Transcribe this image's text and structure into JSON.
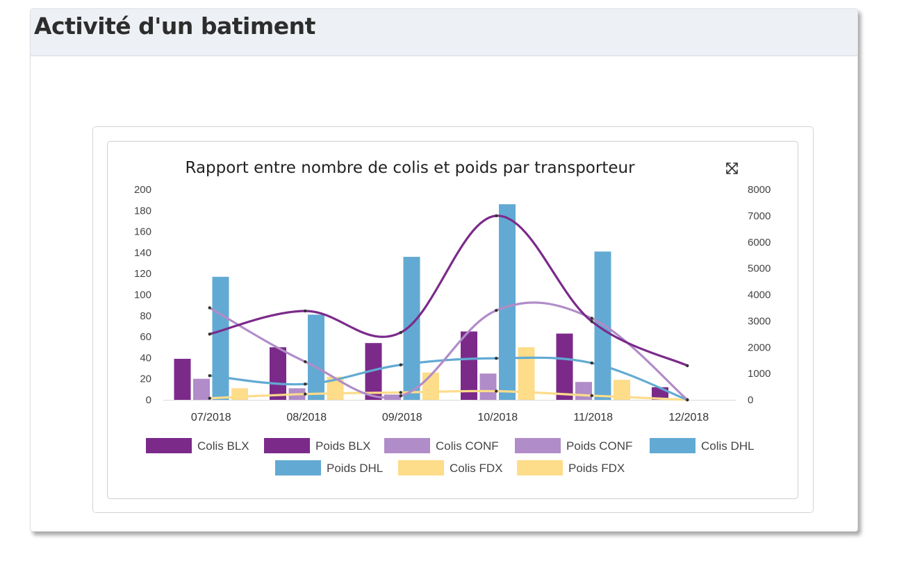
{
  "page": {
    "title": "Activité d'un batiment"
  },
  "chart_data": {
    "type": "bar",
    "title": "Rapport entre nombre de colis et poids par transporteur",
    "categories": [
      "07/2018",
      "08/2018",
      "09/2018",
      "10/2018",
      "11/2018",
      "12/2018"
    ],
    "y_left": {
      "ylim": [
        0,
        200
      ],
      "ticks": [
        "0",
        "20",
        "40",
        "60",
        "80",
        "100",
        "120",
        "140",
        "160",
        "180",
        "200"
      ]
    },
    "y_right": {
      "ylim": [
        0,
        8000
      ],
      "ticks": [
        "0",
        "1000",
        "2000",
        "3000",
        "4000",
        "5000",
        "6000",
        "7000",
        "8000"
      ]
    },
    "grid": false,
    "legend_position": "bottom",
    "series": [
      {
        "name": "Colis BLX",
        "kind": "bar",
        "axis": "left",
        "color": "#7b2a8a",
        "values": [
          39,
          50,
          54,
          65,
          63,
          12
        ]
      },
      {
        "name": "Poids BLX",
        "kind": "line",
        "axis": "right",
        "color": "#7b2a8a",
        "values": [
          2500,
          3380,
          2560,
          7000,
          2980,
          1300
        ]
      },
      {
        "name": "Colis CONF",
        "kind": "bar",
        "axis": "left",
        "color": "#b08cc8",
        "values": [
          20,
          11,
          5,
          25,
          17,
          0
        ]
      },
      {
        "name": "Poids CONF",
        "kind": "line",
        "axis": "right",
        "color": "#b08cc8",
        "values": [
          3500,
          1450,
          150,
          3400,
          3100,
          0
        ]
      },
      {
        "name": "Colis DHL",
        "kind": "bar",
        "axis": "left",
        "color": "#62aad3",
        "values": [
          117,
          81,
          136,
          186,
          141,
          0
        ]
      },
      {
        "name": "Poids DHL",
        "kind": "line",
        "axis": "right",
        "color": "#62aad3",
        "values": [
          920,
          600,
          1330,
          1580,
          1400,
          0
        ]
      },
      {
        "name": "Colis FDX",
        "kind": "bar",
        "axis": "left",
        "color": "#fddc8a",
        "values": [
          11,
          22,
          26,
          50,
          19,
          0
        ]
      },
      {
        "name": "Poids FDX",
        "kind": "line",
        "axis": "right",
        "color": "#fddc8a",
        "values": [
          60,
          220,
          280,
          330,
          160,
          0
        ]
      }
    ]
  },
  "icons": {
    "expand": "expand-icon"
  }
}
